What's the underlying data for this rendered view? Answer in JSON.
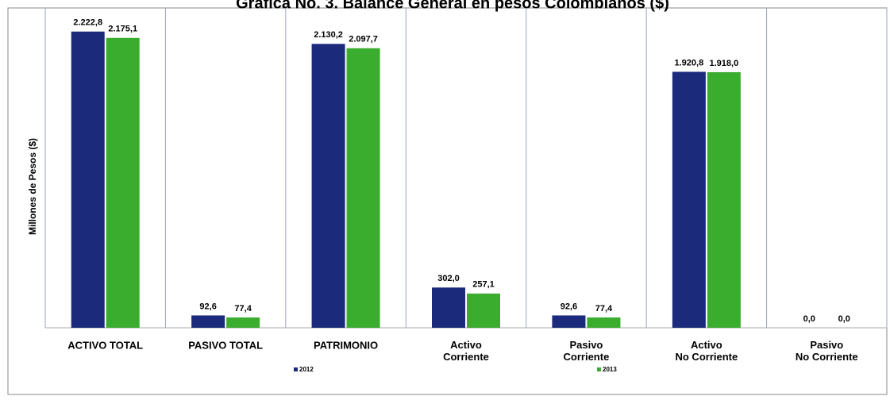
{
  "chart_data": {
    "type": "bar",
    "title": "Grafica No. 3. Balance General en pesos Colombianos ($)",
    "y_label": "Millones de Pesos ($)",
    "categories": [
      "ACTIVO TOTAL",
      "PASIVO TOTAL",
      "PATRIMONIO",
      "Activo\nCorriente",
      "Pasivo\nCorriente",
      "Activo\nNo Corriente",
      "Pasivo\nNo Corriente"
    ],
    "series": [
      {
        "name": "2012",
        "color": "#1c2a7c",
        "values": [
          2222.8,
          92.6,
          2130.2,
          302.0,
          92.6,
          1920.8,
          0.0
        ],
        "value_labels": [
          "2.222,8",
          "92,6",
          "2.130,2",
          "302,0",
          "92,6",
          "1.920,8",
          "0,0"
        ]
      },
      {
        "name": "2013",
        "color": "#3aad2e",
        "values": [
          2175.1,
          77.4,
          2097.7,
          257.1,
          77.4,
          1918.0,
          0.0
        ],
        "value_labels": [
          "2.175,1",
          "77,4",
          "2.097,7",
          "257,1",
          "77,4",
          "1.918,0",
          "0,0"
        ]
      }
    ],
    "ylim": [
      0,
      2400
    ]
  }
}
